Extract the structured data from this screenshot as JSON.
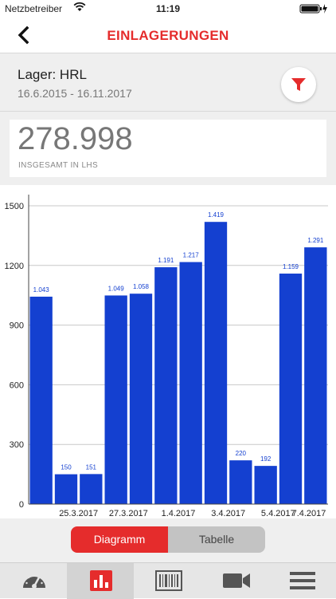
{
  "status_bar": {
    "carrier": "Netzbetreiber",
    "time": "11:19"
  },
  "nav": {
    "title": "EINLAGERUNGEN",
    "back_icon": "chevron-left-icon"
  },
  "filter": {
    "lager": "Lager: HRL",
    "date_range": "16.6.2015 - 16.11.2017",
    "icon": "funnel-icon"
  },
  "total": {
    "value": "278.998",
    "caption": "INSGESAMT IN LHS"
  },
  "colors": {
    "accent": "#e52c2c",
    "bar": "#1440d0",
    "grid": "#c8c8c8"
  },
  "chart_data": {
    "type": "bar",
    "values": [
      1043,
      150,
      151,
      1049,
      1058,
      1191,
      1217,
      1419,
      220,
      192,
      1159,
      1291
    ],
    "value_labels": [
      "1.043",
      "150",
      "151",
      "1.049",
      "1.058",
      "1.191",
      "1.217",
      "1.419",
      "220",
      "192",
      "1.159",
      "1.291"
    ],
    "x_tick_labels": [
      "25.3.2017",
      "27.3.2017",
      "1.4.2017",
      "3.4.2017",
      "5.4.2017",
      "7.4.2017"
    ],
    "y_ticks": [
      "0",
      "300",
      "600",
      "900",
      "1200",
      "1500"
    ],
    "ylim": [
      0,
      1500
    ],
    "grid": true
  },
  "segment": {
    "options": [
      "Diagramm",
      "Tabelle"
    ],
    "selected": "Diagramm"
  },
  "tabbar": {
    "tabs": [
      "gauge-icon",
      "bar-chart-icon",
      "barcode-icon",
      "video-camera-icon",
      "menu-icon"
    ],
    "active": 1
  }
}
